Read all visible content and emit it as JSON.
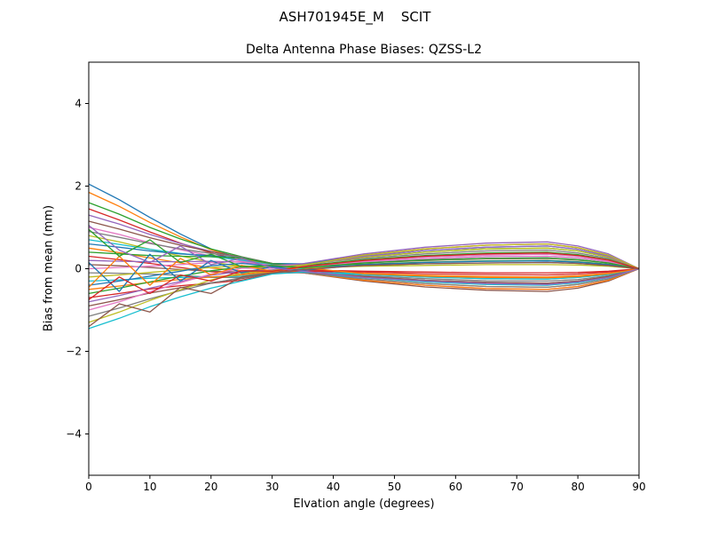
{
  "figure": {
    "suptitle": "ASH701945E_M    SCIT",
    "axes_title": "Delta Antenna Phase Biases: QZSS-L2",
    "xlabel": "Elvation angle (degrees)",
    "ylabel": "Bias from mean (mm)"
  },
  "chart_data": {
    "type": "line",
    "title": "Delta Antenna Phase Biases: QZSS-L2",
    "suptitle": "ASH701945E_M    SCIT",
    "xlabel": "Elvation angle (degrees)",
    "ylabel": "Bias from mean (mm)",
    "xlim": [
      0,
      90
    ],
    "ylim": [
      -5,
      5
    ],
    "xticks": [
      0,
      10,
      20,
      30,
      40,
      50,
      60,
      70,
      80,
      90
    ],
    "yticks": [
      -4,
      -2,
      0,
      2,
      4
    ],
    "ytick_labels": [
      "−4",
      "−2",
      "0",
      "2",
      "4"
    ],
    "grid": false,
    "legend": "none",
    "axis_color": "#000000",
    "background_color": "#ffffff",
    "palette": [
      "#1f77b4",
      "#ff7f0e",
      "#2ca02c",
      "#d62728",
      "#9467bd",
      "#8c564b",
      "#e377c2",
      "#7f7f7f",
      "#bcbd22",
      "#17becf"
    ],
    "x": [
      0,
      5,
      10,
      15,
      20,
      25,
      30,
      35,
      45,
      55,
      65,
      75,
      80,
      85,
      90
    ],
    "series": [
      {
        "values": [
          2.05,
          1.67,
          1.24,
          0.84,
          0.48,
          0.23,
          0.1,
          0.07,
          0.17,
          0.24,
          0.29,
          0.3,
          0.26,
          0.17,
          0
        ]
      },
      {
        "values": [
          1.85,
          1.51,
          1.12,
          0.77,
          0.46,
          0.23,
          0.1,
          0.0,
          -0.11,
          -0.16,
          -0.19,
          -0.2,
          -0.17,
          -0.11,
          0
        ]
      },
      {
        "values": [
          1.6,
          1.32,
          1.0,
          0.72,
          0.48,
          0.29,
          0.13,
          0.11,
          0.28,
          0.4,
          0.48,
          0.5,
          0.43,
          0.28,
          0
        ]
      },
      {
        "values": [
          1.45,
          1.18,
          0.89,
          0.62,
          0.38,
          0.2,
          0.09,
          0.11,
          0.33,
          0.48,
          0.57,
          0.6,
          0.51,
          0.33,
          0
        ]
      },
      {
        "values": [
          1.3,
          1.08,
          0.83,
          0.61,
          0.42,
          0.27,
          0.12,
          -0.02,
          -0.19,
          -0.28,
          -0.33,
          -0.35,
          -0.3,
          -0.19,
          0
        ]
      },
      {
        "values": [
          1.15,
          0.96,
          0.75,
          0.57,
          0.41,
          0.28,
          0.13,
          0.08,
          0.14,
          0.2,
          0.24,
          0.25,
          0.21,
          0.14,
          0
        ]
      },
      {
        "values": [
          1.0,
          0.83,
          0.63,
          0.46,
          0.31,
          0.19,
          0.09,
          -0.05,
          -0.28,
          -0.4,
          -0.48,
          -0.5,
          -0.43,
          -0.28,
          0
        ]
      },
      {
        "values": [
          0.9,
          0.76,
          0.61,
          0.48,
          0.37,
          0.28,
          0.12,
          0.11,
          0.25,
          0.36,
          0.43,
          0.45,
          0.38,
          0.25,
          0
        ]
      },
      {
        "values": [
          0.8,
          0.65,
          0.47,
          0.31,
          0.16,
          0.06,
          0.03,
          0.02,
          0.06,
          0.08,
          0.1,
          0.1,
          0.09,
          0.06,
          0
        ]
      },
      {
        "values": [
          0.7,
          0.59,
          0.47,
          0.37,
          0.29,
          0.21,
          0.09,
          -0.01,
          -0.14,
          -0.2,
          -0.24,
          -0.25,
          -0.21,
          -0.14,
          0
        ]
      },
      {
        "values": [
          0.6,
          0.52,
          0.43,
          0.36,
          0.32,
          0.26,
          0.12,
          0.12,
          0.3,
          0.44,
          0.52,
          0.55,
          0.47,
          0.3,
          0
        ]
      },
      {
        "values": [
          0.5,
          0.39,
          0.26,
          0.14,
          0.02,
          -0.05,
          -0.03,
          -0.08,
          -0.25,
          -0.36,
          -0.43,
          -0.45,
          -0.38,
          -0.25,
          0
        ]
      },
      {
        "values": [
          0.4,
          0.36,
          0.32,
          0.3,
          0.29,
          0.26,
          0.12,
          0.07,
          0.11,
          0.16,
          0.19,
          0.2,
          0.17,
          0.11,
          0
        ]
      },
      {
        "values": [
          0.3,
          0.22,
          0.13,
          0.03,
          -0.07,
          -0.12,
          -0.05,
          -0.03,
          -0.06,
          -0.08,
          -0.1,
          -0.1,
          -0.09,
          -0.06,
          0
        ]
      },
      {
        "values": [
          0.2,
          0.18,
          0.17,
          0.17,
          0.18,
          0.16,
          0.07,
          0.12,
          0.36,
          0.52,
          0.62,
          0.65,
          0.55,
          0.36,
          0
        ]
      },
      {
        "values": [
          0.1,
          0.07,
          0.03,
          -0.02,
          -0.06,
          -0.08,
          -0.04,
          -0.1,
          -0.3,
          -0.44,
          -0.52,
          -0.55,
          -0.47,
          -0.3,
          0
        ]
      },
      {
        "values": [
          0.0,
          0.03,
          0.06,
          0.1,
          0.15,
          0.17,
          0.08,
          0.08,
          0.19,
          0.28,
          0.33,
          0.35,
          0.3,
          0.19,
          0
        ]
      },
      {
        "values": [
          -0.1,
          -0.11,
          -0.13,
          -0.16,
          -0.21,
          -0.21,
          -0.1,
          -0.08,
          -0.17,
          -0.24,
          -0.29,
          -0.3,
          -0.26,
          -0.17,
          0
        ]
      },
      {
        "values": [
          -0.2,
          -0.15,
          -0.09,
          -0.03,
          0.03,
          0.07,
          0.03,
          0.09,
          0.28,
          0.4,
          0.48,
          0.5,
          0.43,
          0.28,
          0
        ]
      },
      {
        "values": [
          -0.3,
          -0.27,
          -0.23,
          -0.21,
          -0.2,
          -0.18,
          -0.08,
          -0.09,
          -0.22,
          -0.32,
          -0.38,
          -0.4,
          -0.34,
          -0.22,
          0
        ]
      },
      {
        "values": [
          -0.4,
          -0.3,
          -0.18,
          -0.06,
          0.07,
          0.13,
          0.06,
          0.04,
          0.08,
          0.12,
          0.14,
          0.15,
          0.13,
          0.08,
          0
        ]
      },
      {
        "values": [
          -0.5,
          -0.42,
          -0.33,
          -0.26,
          -0.2,
          -0.15,
          -0.07,
          -0.1,
          -0.28,
          -0.4,
          -0.48,
          -0.5,
          -0.43,
          -0.28,
          0
        ]
      },
      {
        "values": [
          -0.6,
          -0.47,
          -0.32,
          -0.18,
          -0.05,
          0.04,
          0.02,
          0.07,
          0.22,
          0.32,
          0.38,
          0.4,
          0.34,
          0.22,
          0
        ]
      },
      {
        "values": [
          -0.7,
          -0.6,
          -0.49,
          -0.41,
          -0.35,
          -0.28,
          -0.12,
          -0.06,
          -0.08,
          -0.12,
          -0.14,
          -0.15,
          -0.13,
          -0.08,
          0
        ]
      },
      {
        "values": [
          -0.8,
          -0.65,
          -0.47,
          -0.31,
          -0.16,
          -0.06,
          -0.03,
          0.08,
          0.3,
          0.44,
          0.52,
          0.55,
          0.47,
          0.3,
          0
        ]
      },
      {
        "values": [
          -0.9,
          -0.75,
          -0.59,
          -0.46,
          -0.34,
          -0.24,
          -0.11,
          -0.09,
          -0.19,
          -0.28,
          -0.33,
          -0.35,
          -0.3,
          -0.19,
          0
        ]
      },
      {
        "values": [
          -1.0,
          -0.8,
          -0.56,
          -0.34,
          -0.13,
          0.01,
          0.01,
          0.05,
          0.17,
          0.24,
          0.29,
          0.3,
          0.26,
          0.17,
          0
        ]
      },
      {
        "values": [
          -1.15,
          -0.95,
          -0.73,
          -0.53,
          -0.35,
          -0.22,
          -0.1,
          -0.1,
          -0.25,
          -0.36,
          -0.43,
          -0.45,
          -0.38,
          -0.25,
          0
        ]
      },
      {
        "values": [
          -1.3,
          -1.05,
          -0.77,
          -0.51,
          -0.27,
          -0.11,
          -0.05,
          0.08,
          0.33,
          0.48,
          0.57,
          0.6,
          0.51,
          0.33,
          0
        ]
      },
      {
        "values": [
          -1.45,
          -1.2,
          -0.92,
          -0.68,
          -0.47,
          -0.3,
          -0.13,
          -0.08,
          -0.14,
          -0.2,
          -0.24,
          -0.25,
          -0.21,
          -0.14,
          0
        ]
      },
      {
        "values": [
          0.15,
          -0.55,
          0.35,
          -0.3,
          0.2,
          -0.1,
          0.05,
          -0.04,
          0.1,
          0.15,
          0.18,
          0.19,
          0.16,
          0.1,
          0
        ]
      },
      {
        "values": [
          -0.45,
          0.3,
          -0.4,
          0.25,
          -0.15,
          0.08,
          -0.06,
          0.03,
          -0.12,
          -0.18,
          -0.21,
          -0.22,
          -0.19,
          -0.12,
          0
        ]
      },
      {
        "values": [
          0.95,
          0.3,
          0.7,
          0.15,
          0.35,
          0.05,
          0.08,
          0.02,
          0.14,
          0.21,
          0.25,
          0.26,
          0.22,
          0.14,
          0
        ]
      },
      {
        "values": [
          -0.75,
          -0.2,
          -0.6,
          -0.15,
          -0.3,
          -0.05,
          -0.06,
          0.05,
          0.2,
          0.3,
          0.36,
          0.38,
          0.32,
          0.21,
          0
        ]
      },
      {
        "values": [
          1.05,
          0.45,
          0.15,
          0.55,
          0.1,
          0.25,
          0.02,
          -0.06,
          -0.21,
          -0.3,
          -0.36,
          -0.38,
          -0.32,
          -0.21,
          0
        ]
      },
      {
        "values": [
          -1.4,
          -0.85,
          -1.05,
          -0.45,
          -0.6,
          -0.2,
          -0.1,
          -0.02,
          0.08,
          0.12,
          0.14,
          0.15,
          0.13,
          0.08,
          0
        ]
      }
    ]
  }
}
